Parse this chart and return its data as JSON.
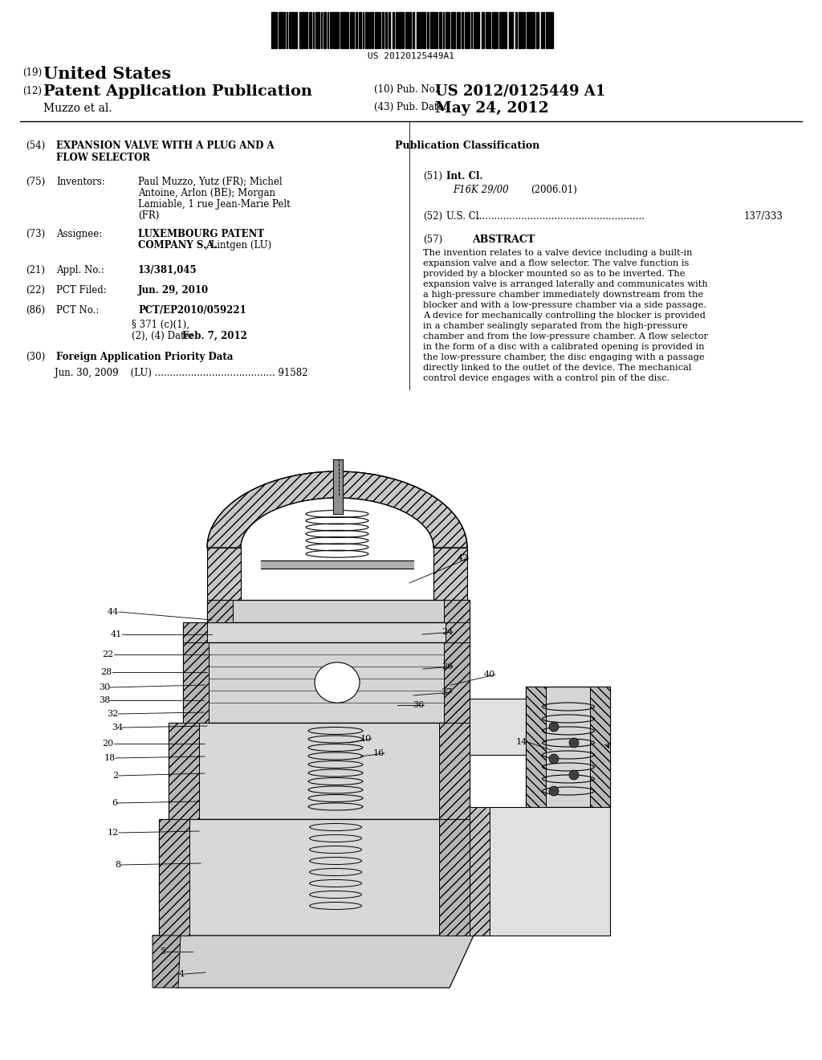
{
  "bg_color": "#ffffff",
  "text_color": "#000000",
  "barcode_text": "US 20120125449A1",
  "header_19_label": "(19)",
  "header_19_text": "United States",
  "header_12_label": "(12)",
  "header_12_text": "Patent Application Publication",
  "header_10_label": "(10) Pub. No.:",
  "header_10_value": "US 2012/0125449 A1",
  "author_line": "Muzzo et al.",
  "header_43_label": "(43) Pub. Date:",
  "header_43_value": "May 24, 2012",
  "f54_label": "(54)",
  "f54_line1": "EXPANSION VALVE WITH A PLUG AND A",
  "f54_line2": "FLOW SELECTOR",
  "f75_label": "(75)",
  "f75_key": "Inventors:",
  "f75_line1": "Paul Muzzo, Yutz (FR); Michel",
  "f75_line2": "Antoine, Arlon (BE); Morgan",
  "f75_line3": "Lamiable, 1 rue Jean-Marie Pelt",
  "f75_line4": "(FR)",
  "f73_label": "(73)",
  "f73_key": "Assignee:",
  "f73_line1_bold": "LUXEMBOURG PATENT",
  "f73_line2_bold": "COMPANY S.A.",
  "f73_line2_plain": ", Lintgen (LU)",
  "f21_label": "(21)",
  "f21_key": "Appl. No.:",
  "f21_val": "13/381,045",
  "f22_label": "(22)",
  "f22_key": "PCT Filed:",
  "f22_val": "Jun. 29, 2010",
  "f86_label": "(86)",
  "f86_key": "PCT No.:",
  "f86_val": "PCT/EP2010/059221",
  "f86b_line1": "§ 371 (c)(1),",
  "f86b_line2": "(2), (4) Date:",
  "f86b_val2": "Feb. 7, 2012",
  "f30_label": "(30)",
  "f30_key": "Foreign Application Priority Data",
  "f30_val": "Jun. 30, 2009    (LU) ........................................ 91582",
  "pub_class_title": "Publication Classification",
  "f51_label": "(51)",
  "f51_key": "Int. Cl.",
  "f51_code": "F16K 29/00",
  "f51_year": "(2006.01)",
  "f52_label": "(52)",
  "f52_key": "U.S. Cl.",
  "f52_dots": "........................................................",
  "f52_val": "137/333",
  "f57_label": "(57)",
  "f57_key": "ABSTRACT",
  "abstract_lines": [
    "The invention relates to a valve device including a built-in",
    "expansion valve and a flow selector. The valve function is",
    "provided by a blocker mounted so as to be inverted. The",
    "expansion valve is arranged laterally and communicates with",
    "a high-pressure chamber immediately downstream from the",
    "blocker and with a low-pressure chamber via a side passage.",
    "A device for mechanically controlling the blocker is provided",
    "in a chamber sealingly separated from the high-pressure",
    "chamber and from the low-pressure chamber. A flow selector",
    "in the form of a disc with a calibrated opening is provided in",
    "the low-pressure chamber, the disc engaging with a passage",
    "directly linked to the outlet of the device. The mechanical",
    "control device engages with a control pin of the disc."
  ]
}
